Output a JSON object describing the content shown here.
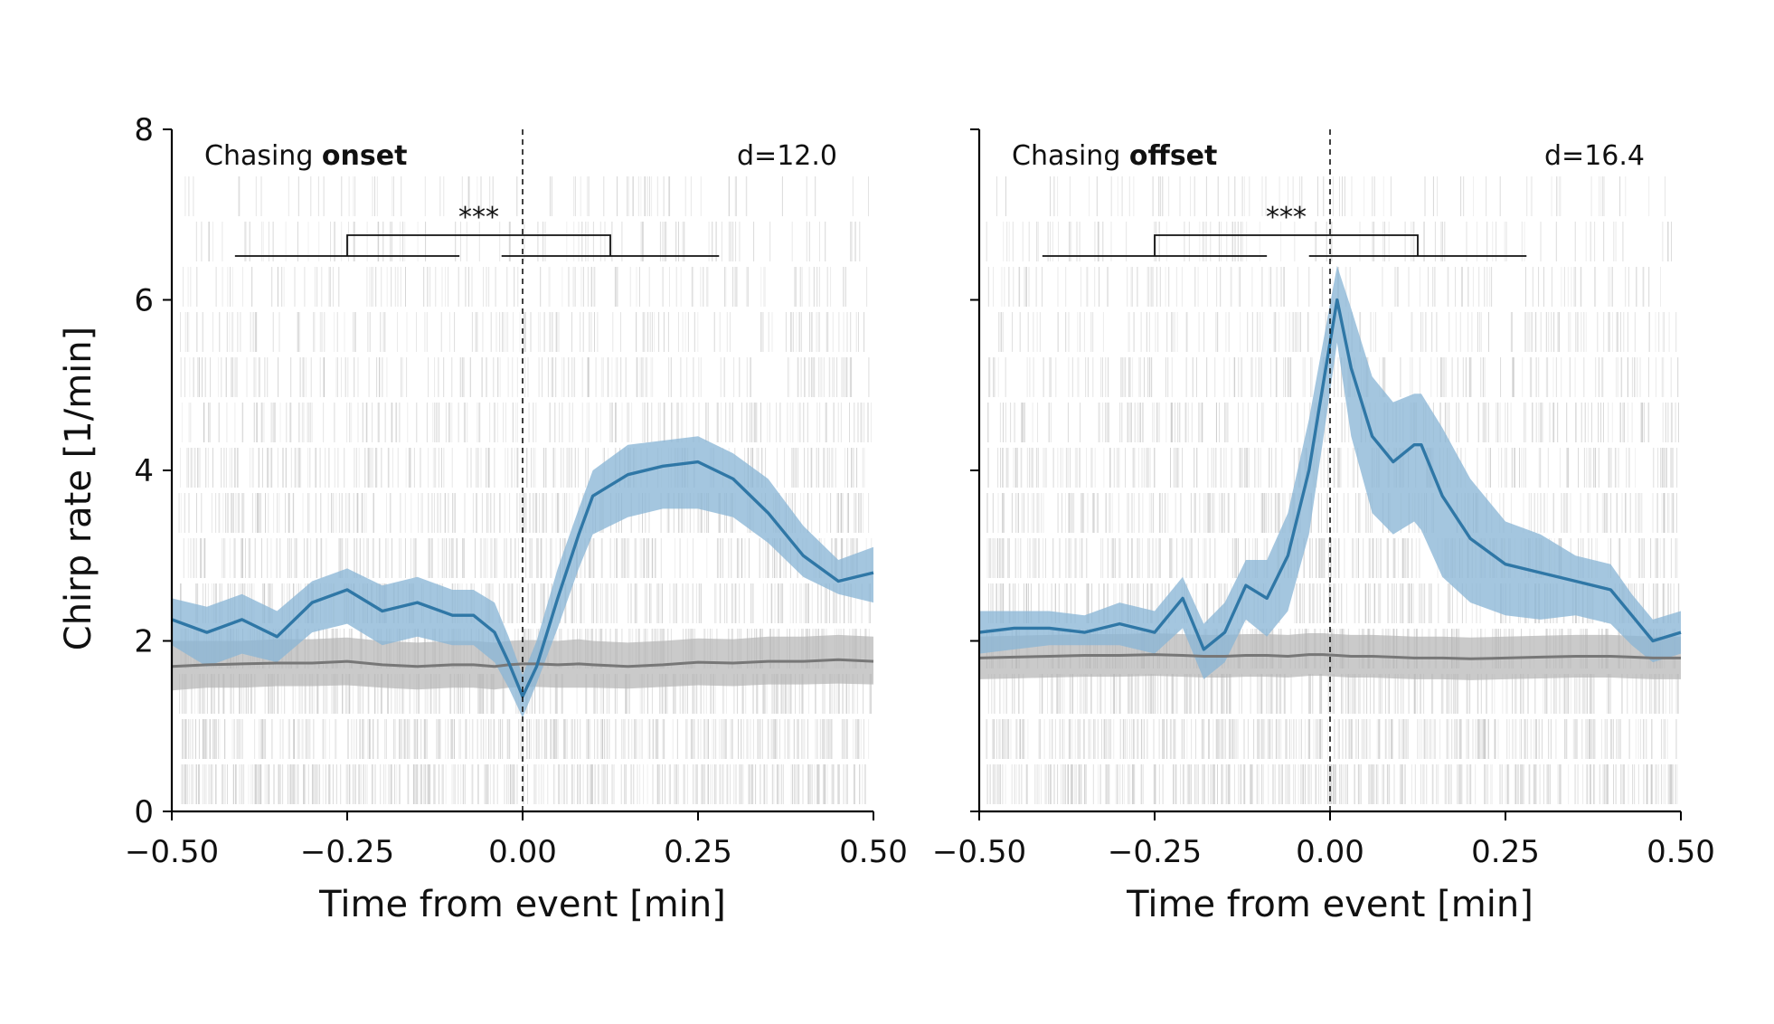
{
  "chart_data": [
    {
      "type": "line",
      "panel": "onset",
      "title_prefix": "Chasing ",
      "title_bold": "onset",
      "stat_label": "d=12.0",
      "significance": "***",
      "xlabel": "Time from event [min]",
      "ylabel": "Chirp rate [1/min]",
      "xlim": [
        -0.5,
        0.5
      ],
      "ylim": [
        0,
        8
      ],
      "xticks": [
        -0.5,
        -0.25,
        0.0,
        0.25,
        0.5
      ],
      "xtick_labels": [
        "−0.50",
        "−0.25",
        "0.00",
        "0.25",
        "0.50"
      ],
      "yticks": [
        0,
        2,
        4,
        6,
        8
      ],
      "ytick_labels": [
        "0",
        "2",
        "4",
        "6",
        "8"
      ],
      "event_x": 0.0,
      "brackets": {
        "left_window": [
          -0.41,
          -0.09
        ],
        "right_window": [
          -0.03,
          0.28
        ],
        "connector": [
          -0.25,
          0.125
        ]
      },
      "colors": {
        "event": "#2f77a6",
        "event_band": "#8ab6d6",
        "baseline": "#777777",
        "baseline_band": "#b4b4b4",
        "raster": "#c8c8c8"
      },
      "x": [
        -0.5,
        -0.45,
        -0.4,
        -0.35,
        -0.3,
        -0.25,
        -0.2,
        -0.15,
        -0.1,
        -0.07,
        -0.04,
        -0.02,
        0.0,
        0.02,
        0.05,
        0.08,
        0.1,
        0.15,
        0.2,
        0.25,
        0.3,
        0.35,
        0.4,
        0.45,
        0.5
      ],
      "series": [
        {
          "role": "event",
          "mean": [
            2.25,
            2.1,
            2.25,
            2.05,
            2.45,
            2.6,
            2.35,
            2.45,
            2.3,
            2.3,
            2.1,
            1.75,
            1.35,
            1.7,
            2.5,
            3.25,
            3.7,
            3.95,
            4.05,
            4.1,
            3.9,
            3.5,
            3.0,
            2.7,
            2.8
          ],
          "lower": [
            1.95,
            1.7,
            1.85,
            1.75,
            2.1,
            2.2,
            1.95,
            2.05,
            1.95,
            1.95,
            1.75,
            1.45,
            1.1,
            1.5,
            2.15,
            2.85,
            3.25,
            3.45,
            3.55,
            3.55,
            3.45,
            3.15,
            2.75,
            2.55,
            2.45
          ],
          "upper": [
            2.5,
            2.4,
            2.55,
            2.35,
            2.7,
            2.85,
            2.65,
            2.75,
            2.6,
            2.6,
            2.45,
            2.05,
            1.6,
            2.0,
            2.85,
            3.55,
            4.0,
            4.3,
            4.35,
            4.4,
            4.2,
            3.9,
            3.35,
            2.95,
            3.1
          ]
        },
        {
          "role": "baseline",
          "mean": [
            1.7,
            1.72,
            1.73,
            1.74,
            1.74,
            1.76,
            1.72,
            1.7,
            1.72,
            1.72,
            1.7,
            1.72,
            1.73,
            1.73,
            1.72,
            1.73,
            1.72,
            1.7,
            1.72,
            1.75,
            1.74,
            1.76,
            1.76,
            1.78,
            1.76
          ],
          "lower": [
            1.42,
            1.45,
            1.45,
            1.47,
            1.47,
            1.48,
            1.45,
            1.43,
            1.45,
            1.45,
            1.43,
            1.45,
            1.46,
            1.46,
            1.45,
            1.45,
            1.45,
            1.44,
            1.46,
            1.48,
            1.47,
            1.49,
            1.49,
            1.5,
            1.49
          ],
          "upper": [
            2.0,
            2.0,
            2.0,
            2.02,
            2.02,
            2.04,
            2.0,
            1.98,
            2.0,
            2.0,
            1.98,
            2.0,
            2.01,
            2.01,
            2.0,
            2.02,
            2.0,
            1.98,
            2.0,
            2.03,
            2.02,
            2.05,
            2.05,
            2.07,
            2.05
          ]
        }
      ]
    },
    {
      "type": "line",
      "panel": "offset",
      "title_prefix": "Chasing ",
      "title_bold": "offset",
      "stat_label": "d=16.4",
      "significance": "***",
      "xlabel": "Time from event [min]",
      "ylabel": "",
      "xlim": [
        -0.5,
        0.5
      ],
      "ylim": [
        0,
        8
      ],
      "xticks": [
        -0.5,
        -0.25,
        0.0,
        0.25,
        0.5
      ],
      "xtick_labels": [
        "−0.50",
        "−0.25",
        "0.00",
        "0.25",
        "0.50"
      ],
      "yticks": [
        0,
        2,
        4,
        6,
        8
      ],
      "ytick_labels": [],
      "event_x": 0.0,
      "brackets": {
        "left_window": [
          -0.41,
          -0.09
        ],
        "right_window": [
          -0.03,
          0.28
        ],
        "connector": [
          -0.25,
          0.125
        ]
      },
      "colors": {
        "event": "#2f77a6",
        "event_band": "#8ab6d6",
        "baseline": "#777777",
        "baseline_band": "#b4b4b4",
        "raster": "#c8c8c8"
      },
      "x": [
        -0.5,
        -0.45,
        -0.4,
        -0.35,
        -0.3,
        -0.25,
        -0.21,
        -0.18,
        -0.15,
        -0.12,
        -0.09,
        -0.06,
        -0.03,
        -0.01,
        0.01,
        0.03,
        0.06,
        0.09,
        0.12,
        0.13,
        0.16,
        0.2,
        0.25,
        0.3,
        0.35,
        0.4,
        0.43,
        0.46,
        0.5
      ],
      "series": [
        {
          "role": "event",
          "mean": [
            2.1,
            2.15,
            2.15,
            2.1,
            2.2,
            2.1,
            2.5,
            1.9,
            2.1,
            2.65,
            2.5,
            3.0,
            4.0,
            5.0,
            6.0,
            5.2,
            4.4,
            4.1,
            4.3,
            4.3,
            3.7,
            3.2,
            2.9,
            2.8,
            2.7,
            2.6,
            2.3,
            2.0,
            2.1
          ],
          "lower": [
            1.85,
            1.9,
            1.95,
            1.95,
            1.95,
            1.85,
            2.15,
            1.55,
            1.75,
            2.25,
            2.05,
            2.35,
            3.25,
            4.35,
            5.5,
            4.4,
            3.5,
            3.25,
            3.4,
            3.3,
            2.75,
            2.45,
            2.3,
            2.25,
            2.3,
            2.2,
            1.95,
            1.75,
            1.85
          ],
          "upper": [
            2.35,
            2.35,
            2.35,
            2.3,
            2.45,
            2.35,
            2.75,
            2.2,
            2.45,
            2.95,
            2.95,
            3.5,
            4.6,
            5.5,
            6.4,
            5.9,
            5.1,
            4.8,
            4.9,
            4.9,
            4.5,
            3.9,
            3.4,
            3.25,
            3.0,
            2.9,
            2.55,
            2.25,
            2.35
          ]
        },
        {
          "role": "baseline",
          "mean": [
            1.8,
            1.81,
            1.82,
            1.83,
            1.83,
            1.84,
            1.83,
            1.82,
            1.82,
            1.83,
            1.83,
            1.82,
            1.84,
            1.84,
            1.83,
            1.82,
            1.82,
            1.81,
            1.8,
            1.8,
            1.8,
            1.79,
            1.8,
            1.81,
            1.82,
            1.82,
            1.81,
            1.8,
            1.8
          ],
          "lower": [
            1.55,
            1.56,
            1.57,
            1.58,
            1.58,
            1.59,
            1.58,
            1.57,
            1.57,
            1.58,
            1.58,
            1.57,
            1.59,
            1.59,
            1.58,
            1.57,
            1.57,
            1.56,
            1.55,
            1.55,
            1.55,
            1.54,
            1.55,
            1.56,
            1.57,
            1.57,
            1.56,
            1.55,
            1.55
          ],
          "upper": [
            2.05,
            2.06,
            2.07,
            2.08,
            2.08,
            2.09,
            2.08,
            2.07,
            2.07,
            2.08,
            2.08,
            2.07,
            2.09,
            2.09,
            2.08,
            2.07,
            2.07,
            2.06,
            2.05,
            2.05,
            2.05,
            2.04,
            2.05,
            2.06,
            2.07,
            2.07,
            2.06,
            2.05,
            2.05
          ]
        }
      ]
    }
  ]
}
